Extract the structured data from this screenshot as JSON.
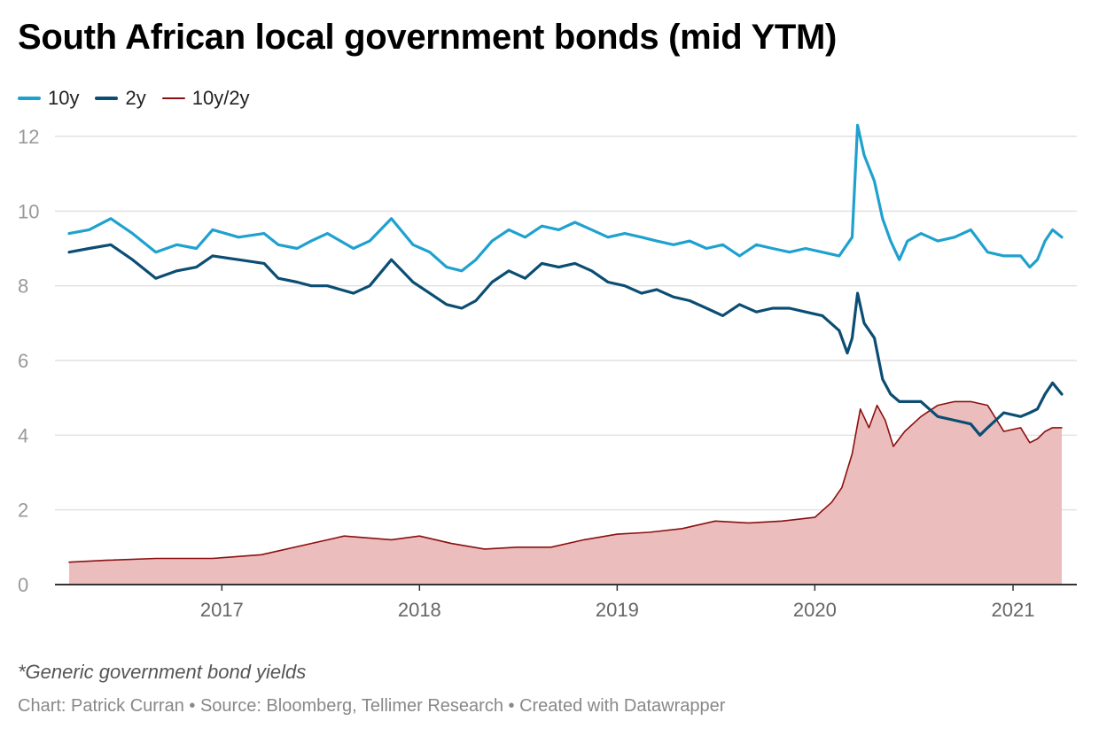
{
  "title": "South African local government bonds (mid YTM)",
  "note": "*Generic government bond yields",
  "credit": "Chart: Patrick Curran • Source: Bloomberg, Tellimer Research • Created with Datawrapper",
  "colors": {
    "series_10y": "#1fa1cf",
    "series_2y": "#0b4d73",
    "series_spread": "#8b1010",
    "spread_fill": "#ecbdbd",
    "grid": "#e2e2e2",
    "axis": "#333333",
    "tick_text": "#999999",
    "year_text": "#666666"
  },
  "chart_data": {
    "type": "line",
    "title": "South African local government bonds (mid YTM)",
    "xlabel": "",
    "ylabel": "",
    "x_range": [
      "2016-03-25",
      "2021-04-01"
    ],
    "ylim": [
      0,
      12
    ],
    "y_ticks": [
      0,
      2,
      4,
      6,
      8,
      10,
      12
    ],
    "x_tick_labels": [
      "2017",
      "2018",
      "2019",
      "2020",
      "2021"
    ],
    "grid": true,
    "legend_position": "top-left",
    "series": [
      {
        "name": "10y",
        "style": "line-thick",
        "color": "#1fa1cf",
        "points": [
          [
            "2016-03-25",
            9.4
          ],
          [
            "2016-05-01",
            9.5
          ],
          [
            "2016-06-10",
            9.8
          ],
          [
            "2016-07-20",
            9.4
          ],
          [
            "2016-09-01",
            8.9
          ],
          [
            "2016-10-10",
            9.1
          ],
          [
            "2016-11-15",
            9.0
          ],
          [
            "2016-12-15",
            9.5
          ],
          [
            "2017-02-01",
            9.3
          ],
          [
            "2017-03-20",
            9.4
          ],
          [
            "2017-04-15",
            9.1
          ],
          [
            "2017-05-20",
            9.0
          ],
          [
            "2017-06-15",
            9.2
          ],
          [
            "2017-07-15",
            9.4
          ],
          [
            "2017-09-01",
            9.0
          ],
          [
            "2017-10-01",
            9.2
          ],
          [
            "2017-11-10",
            9.8
          ],
          [
            "2017-12-20",
            9.1
          ],
          [
            "2018-01-20",
            8.9
          ],
          [
            "2018-02-20",
            8.5
          ],
          [
            "2018-03-20",
            8.4
          ],
          [
            "2018-04-15",
            8.7
          ],
          [
            "2018-05-15",
            9.2
          ],
          [
            "2018-06-15",
            9.5
          ],
          [
            "2018-07-15",
            9.3
          ],
          [
            "2018-08-15",
            9.6
          ],
          [
            "2018-09-15",
            9.5
          ],
          [
            "2018-10-15",
            9.7
          ],
          [
            "2018-11-15",
            9.5
          ],
          [
            "2018-12-15",
            9.3
          ],
          [
            "2019-01-15",
            9.4
          ],
          [
            "2019-02-15",
            9.3
          ],
          [
            "2019-03-15",
            9.2
          ],
          [
            "2019-04-15",
            9.1
          ],
          [
            "2019-05-15",
            9.2
          ],
          [
            "2019-06-15",
            9.0
          ],
          [
            "2019-07-15",
            9.1
          ],
          [
            "2019-08-15",
            8.8
          ],
          [
            "2019-09-15",
            9.1
          ],
          [
            "2019-10-15",
            9.0
          ],
          [
            "2019-11-15",
            8.9
          ],
          [
            "2019-12-15",
            9.0
          ],
          [
            "2020-01-15",
            8.9
          ],
          [
            "2020-02-15",
            8.8
          ],
          [
            "2020-03-10",
            9.3
          ],
          [
            "2020-03-20",
            12.3
          ],
          [
            "2020-04-01",
            11.5
          ],
          [
            "2020-04-20",
            10.8
          ],
          [
            "2020-05-05",
            9.8
          ],
          [
            "2020-05-20",
            9.2
          ],
          [
            "2020-06-05",
            8.7
          ],
          [
            "2020-06-20",
            9.2
          ],
          [
            "2020-07-15",
            9.4
          ],
          [
            "2020-08-15",
            9.2
          ],
          [
            "2020-09-15",
            9.3
          ],
          [
            "2020-10-15",
            9.5
          ],
          [
            "2020-11-15",
            8.9
          ],
          [
            "2020-12-15",
            8.8
          ],
          [
            "2021-01-15",
            8.8
          ],
          [
            "2021-02-01",
            8.5
          ],
          [
            "2021-02-15",
            8.7
          ],
          [
            "2021-03-01",
            9.2
          ],
          [
            "2021-03-15",
            9.5
          ],
          [
            "2021-04-01",
            9.3
          ]
        ]
      },
      {
        "name": "2y",
        "style": "line-thick",
        "color": "#0b4d73",
        "points": [
          [
            "2016-03-25",
            8.9
          ],
          [
            "2016-05-01",
            9.0
          ],
          [
            "2016-06-10",
            9.1
          ],
          [
            "2016-07-20",
            8.7
          ],
          [
            "2016-09-01",
            8.2
          ],
          [
            "2016-10-10",
            8.4
          ],
          [
            "2016-11-15",
            8.5
          ],
          [
            "2016-12-15",
            8.8
          ],
          [
            "2017-02-01",
            8.7
          ],
          [
            "2017-03-20",
            8.6
          ],
          [
            "2017-04-15",
            8.2
          ],
          [
            "2017-05-20",
            8.1
          ],
          [
            "2017-06-15",
            8.0
          ],
          [
            "2017-07-15",
            8.0
          ],
          [
            "2017-09-01",
            7.8
          ],
          [
            "2017-10-01",
            8.0
          ],
          [
            "2017-11-10",
            8.7
          ],
          [
            "2017-12-20",
            8.1
          ],
          [
            "2018-01-20",
            7.8
          ],
          [
            "2018-02-20",
            7.5
          ],
          [
            "2018-03-20",
            7.4
          ],
          [
            "2018-04-15",
            7.6
          ],
          [
            "2018-05-15",
            8.1
          ],
          [
            "2018-06-15",
            8.4
          ],
          [
            "2018-07-15",
            8.2
          ],
          [
            "2018-08-15",
            8.6
          ],
          [
            "2018-09-15",
            8.5
          ],
          [
            "2018-10-15",
            8.6
          ],
          [
            "2018-11-15",
            8.4
          ],
          [
            "2018-12-15",
            8.1
          ],
          [
            "2019-01-15",
            8.0
          ],
          [
            "2019-02-15",
            7.8
          ],
          [
            "2019-03-15",
            7.9
          ],
          [
            "2019-04-15",
            7.7
          ],
          [
            "2019-05-15",
            7.6
          ],
          [
            "2019-06-15",
            7.4
          ],
          [
            "2019-07-15",
            7.2
          ],
          [
            "2019-08-15",
            7.5
          ],
          [
            "2019-09-15",
            7.3
          ],
          [
            "2019-10-15",
            7.4
          ],
          [
            "2019-11-15",
            7.4
          ],
          [
            "2019-12-15",
            7.3
          ],
          [
            "2020-01-15",
            7.2
          ],
          [
            "2020-02-15",
            6.8
          ],
          [
            "2020-03-01",
            6.2
          ],
          [
            "2020-03-10",
            6.6
          ],
          [
            "2020-03-20",
            7.8
          ],
          [
            "2020-04-01",
            7.0
          ],
          [
            "2020-04-20",
            6.6
          ],
          [
            "2020-05-05",
            5.5
          ],
          [
            "2020-05-20",
            5.1
          ],
          [
            "2020-06-05",
            4.9
          ],
          [
            "2020-06-20",
            4.9
          ],
          [
            "2020-07-15",
            4.9
          ],
          [
            "2020-08-15",
            4.5
          ],
          [
            "2020-09-15",
            4.4
          ],
          [
            "2020-10-15",
            4.3
          ],
          [
            "2020-11-01",
            4.0
          ],
          [
            "2020-11-15",
            4.2
          ],
          [
            "2020-12-15",
            4.6
          ],
          [
            "2021-01-15",
            4.5
          ],
          [
            "2021-02-01",
            4.6
          ],
          [
            "2021-02-15",
            4.7
          ],
          [
            "2021-03-01",
            5.1
          ],
          [
            "2021-03-15",
            5.4
          ],
          [
            "2021-04-01",
            5.1
          ]
        ]
      },
      {
        "name": "10y/2y",
        "style": "area-thin",
        "color": "#8b1010",
        "points": [
          [
            "2016-03-25",
            0.6
          ],
          [
            "2016-06-01",
            0.65
          ],
          [
            "2016-09-01",
            0.7
          ],
          [
            "2016-12-15",
            0.7
          ],
          [
            "2017-03-15",
            0.8
          ],
          [
            "2017-06-15",
            1.1
          ],
          [
            "2017-08-15",
            1.3
          ],
          [
            "2017-11-10",
            1.2
          ],
          [
            "2018-01-01",
            1.3
          ],
          [
            "2018-03-01",
            1.1
          ],
          [
            "2018-05-01",
            0.95
          ],
          [
            "2018-07-01",
            1.0
          ],
          [
            "2018-09-01",
            1.0
          ],
          [
            "2018-11-01",
            1.2
          ],
          [
            "2019-01-01",
            1.35
          ],
          [
            "2019-03-01",
            1.4
          ],
          [
            "2019-05-01",
            1.5
          ],
          [
            "2019-07-01",
            1.7
          ],
          [
            "2019-09-01",
            1.65
          ],
          [
            "2019-11-01",
            1.7
          ],
          [
            "2020-01-01",
            1.8
          ],
          [
            "2020-02-01",
            2.2
          ],
          [
            "2020-02-20",
            2.6
          ],
          [
            "2020-03-10",
            3.5
          ],
          [
            "2020-03-25",
            4.7
          ],
          [
            "2020-04-10",
            4.2
          ],
          [
            "2020-04-25",
            4.8
          ],
          [
            "2020-05-10",
            4.4
          ],
          [
            "2020-05-25",
            3.7
          ],
          [
            "2020-06-15",
            4.1
          ],
          [
            "2020-07-15",
            4.5
          ],
          [
            "2020-08-15",
            4.8
          ],
          [
            "2020-09-15",
            4.9
          ],
          [
            "2020-10-15",
            4.9
          ],
          [
            "2020-11-15",
            4.8
          ],
          [
            "2020-12-15",
            4.1
          ],
          [
            "2021-01-15",
            4.2
          ],
          [
            "2021-02-01",
            3.8
          ],
          [
            "2021-02-15",
            3.9
          ],
          [
            "2021-03-01",
            4.1
          ],
          [
            "2021-03-15",
            4.2
          ],
          [
            "2021-04-01",
            4.2
          ]
        ]
      }
    ]
  }
}
